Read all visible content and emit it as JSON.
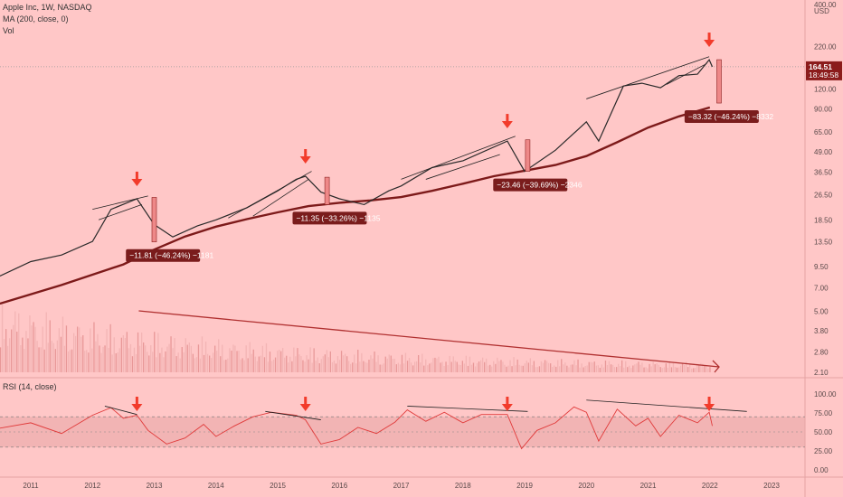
{
  "header": {
    "title": "Apple Inc, 1W, NASDAQ",
    "ma": "MA (200, close, 0)",
    "vol": "Vol",
    "rsi": "RSI (14, close)"
  },
  "chart_data": {
    "type": "line",
    "price_axis": {
      "scale": "log",
      "ticks": [
        "400.00",
        "USD",
        "220.00",
        "160.00",
        "120.00",
        "90.00",
        "65.00",
        "49.00",
        "36.50",
        "26.50",
        "18.50",
        "13.50",
        "9.50",
        "7.00",
        "5.00",
        "3.80",
        "2.80",
        "2.10"
      ],
      "tick_values": [
        400,
        null,
        220,
        160,
        120,
        90,
        65,
        49,
        36.5,
        26.5,
        18.5,
        13.5,
        9.5,
        7,
        5,
        3.8,
        2.8,
        2.1
      ]
    },
    "last_price": {
      "value": "164.51",
      "countdown": "18:49:58"
    },
    "rsi_axis": {
      "ticks": [
        "100.00",
        "75.00",
        "50.00",
        "25.00",
        "0.00"
      ],
      "tick_values": [
        100,
        75,
        50,
        25,
        0
      ],
      "band": [
        30,
        70
      ]
    },
    "x_axis": {
      "ticks": [
        "2011",
        "2012",
        "2013",
        "2014",
        "2015",
        "2016",
        "2017",
        "2018",
        "2019",
        "2020",
        "2021",
        "2022",
        "2023"
      ]
    },
    "price_series": [
      [
        2010.5,
        8.3
      ],
      [
        2011.0,
        10.2
      ],
      [
        2011.5,
        11.2
      ],
      [
        2012.0,
        13.6
      ],
      [
        2012.3,
        21.5
      ],
      [
        2012.72,
        25
      ],
      [
        2013.0,
        17.3
      ],
      [
        2013.3,
        14.5
      ],
      [
        2013.7,
        17
      ],
      [
        2014.0,
        18.5
      ],
      [
        2014.5,
        22
      ],
      [
        2015.0,
        28
      ],
      [
        2015.3,
        33
      ],
      [
        2015.45,
        34.5
      ],
      [
        2015.7,
        27.5
      ],
      [
        2016.0,
        25
      ],
      [
        2016.4,
        23
      ],
      [
        2016.8,
        28
      ],
      [
        2017.0,
        30
      ],
      [
        2017.5,
        39
      ],
      [
        2018.0,
        43
      ],
      [
        2018.72,
        57
      ],
      [
        2019.0,
        37
      ],
      [
        2019.5,
        50
      ],
      [
        2020.0,
        75
      ],
      [
        2020.2,
        57
      ],
      [
        2020.6,
        125
      ],
      [
        2020.9,
        130
      ],
      [
        2021.2,
        122
      ],
      [
        2021.5,
        145
      ],
      [
        2021.8,
        148
      ],
      [
        2021.99,
        182
      ],
      [
        2022.04,
        164.51
      ]
    ],
    "ma200_series": [
      [
        2010.5,
        5.6
      ],
      [
        2011.5,
        7.3
      ],
      [
        2012.5,
        9.8
      ],
      [
        2013.0,
        12.1
      ],
      [
        2013.5,
        14.6
      ],
      [
        2014.0,
        16.8
      ],
      [
        2014.5,
        18.7
      ],
      [
        2015.0,
        20.6
      ],
      [
        2015.5,
        22.5
      ],
      [
        2016.0,
        23.6
      ],
      [
        2016.5,
        24.4
      ],
      [
        2017.0,
        25.6
      ],
      [
        2017.5,
        28
      ],
      [
        2018.0,
        31
      ],
      [
        2018.5,
        34.5
      ],
      [
        2019.0,
        37.3
      ],
      [
        2019.5,
        40.5
      ],
      [
        2020.0,
        46
      ],
      [
        2020.5,
        56
      ],
      [
        2021.0,
        69
      ],
      [
        2021.5,
        81
      ],
      [
        2022.0,
        92
      ]
    ],
    "rsi_series": [
      [
        2010.5,
        55
      ],
      [
        2011.0,
        62
      ],
      [
        2011.5,
        48
      ],
      [
        2012.0,
        72
      ],
      [
        2012.3,
        82
      ],
      [
        2012.5,
        68
      ],
      [
        2012.72,
        72
      ],
      [
        2012.9,
        52
      ],
      [
        2013.2,
        34
      ],
      [
        2013.5,
        42
      ],
      [
        2013.8,
        60
      ],
      [
        2014.0,
        44
      ],
      [
        2014.3,
        58
      ],
      [
        2014.6,
        70
      ],
      [
        2014.9,
        76
      ],
      [
        2015.3,
        72
      ],
      [
        2015.45,
        66
      ],
      [
        2015.7,
        34
      ],
      [
        2016.0,
        40
      ],
      [
        2016.3,
        56
      ],
      [
        2016.6,
        48
      ],
      [
        2016.9,
        63
      ],
      [
        2017.1,
        79
      ],
      [
        2017.4,
        64
      ],
      [
        2017.7,
        76
      ],
      [
        2018.0,
        62
      ],
      [
        2018.3,
        73
      ],
      [
        2018.72,
        73
      ],
      [
        2018.95,
        28
      ],
      [
        2019.2,
        52
      ],
      [
        2019.5,
        62
      ],
      [
        2019.8,
        83
      ],
      [
        2020.0,
        76
      ],
      [
        2020.2,
        38
      ],
      [
        2020.5,
        80
      ],
      [
        2020.8,
        58
      ],
      [
        2021.0,
        68
      ],
      [
        2021.2,
        44
      ],
      [
        2021.5,
        72
      ],
      [
        2021.8,
        62
      ],
      [
        2021.99,
        76
      ],
      [
        2022.04,
        58
      ]
    ],
    "volume": {
      "trend_start": [
        2012.75,
        "high"
      ],
      "trend_end": [
        2022.15,
        "low"
      ]
    },
    "wedges": [
      {
        "top": [
          [
            2012.0,
            21.5
          ],
          [
            2012.9,
            26
          ]
        ],
        "bottom": [
          [
            2012.1,
            18.5
          ],
          [
            2012.8,
            23
          ]
        ]
      },
      {
        "top": [
          [
            2014.2,
            19
          ],
          [
            2015.55,
            37
          ]
        ],
        "bottom": [
          [
            2014.6,
            19.5
          ],
          [
            2015.5,
            33
          ]
        ]
      },
      {
        "top": [
          [
            2017.0,
            33
          ],
          [
            2018.85,
            61
          ]
        ],
        "bottom": [
          [
            2017.4,
            33
          ],
          [
            2018.6,
            47
          ]
        ]
      },
      {
        "top": [
          [
            2020.0,
            104
          ],
          [
            2021.99,
            190
          ]
        ],
        "bottom": [
          [
            2021.3,
            128
          ],
          [
            2021.95,
            172
          ]
        ]
      }
    ],
    "rsi_divergences": [
      [
        [
          2012.2,
          84
        ],
        [
          2012.72,
          73
        ]
      ],
      [
        [
          2014.8,
          77
        ],
        [
          2015.7,
          66
        ]
      ],
      [
        [
          2017.1,
          84
        ],
        [
          2019.05,
          77
        ]
      ],
      [
        [
          2020.0,
          92
        ],
        [
          2022.6,
          77
        ]
      ]
    ],
    "signal_arrows": [
      2012.72,
      2015.45,
      2018.72,
      2021.99
    ],
    "drawdowns": [
      {
        "at": 2013.0,
        "from": 25.5,
        "to": 13.5,
        "label": "−11.81 (−46.24%) −1181",
        "label_x": 2012.6
      },
      {
        "at": 2015.8,
        "from": 34,
        "to": 23,
        "label": "−11.35 (−33.26%) −1135",
        "label_x": 2015.3
      },
      {
        "at": 2019.05,
        "from": 58,
        "to": 37,
        "label": "−23.46 (−39.69%) −2346",
        "label_x": 2018.55
      },
      {
        "at": 2022.15,
        "from": 182,
        "to": 98,
        "label": "−83.32 (−46.24%) −8332",
        "label_x": 2021.65
      }
    ]
  }
}
